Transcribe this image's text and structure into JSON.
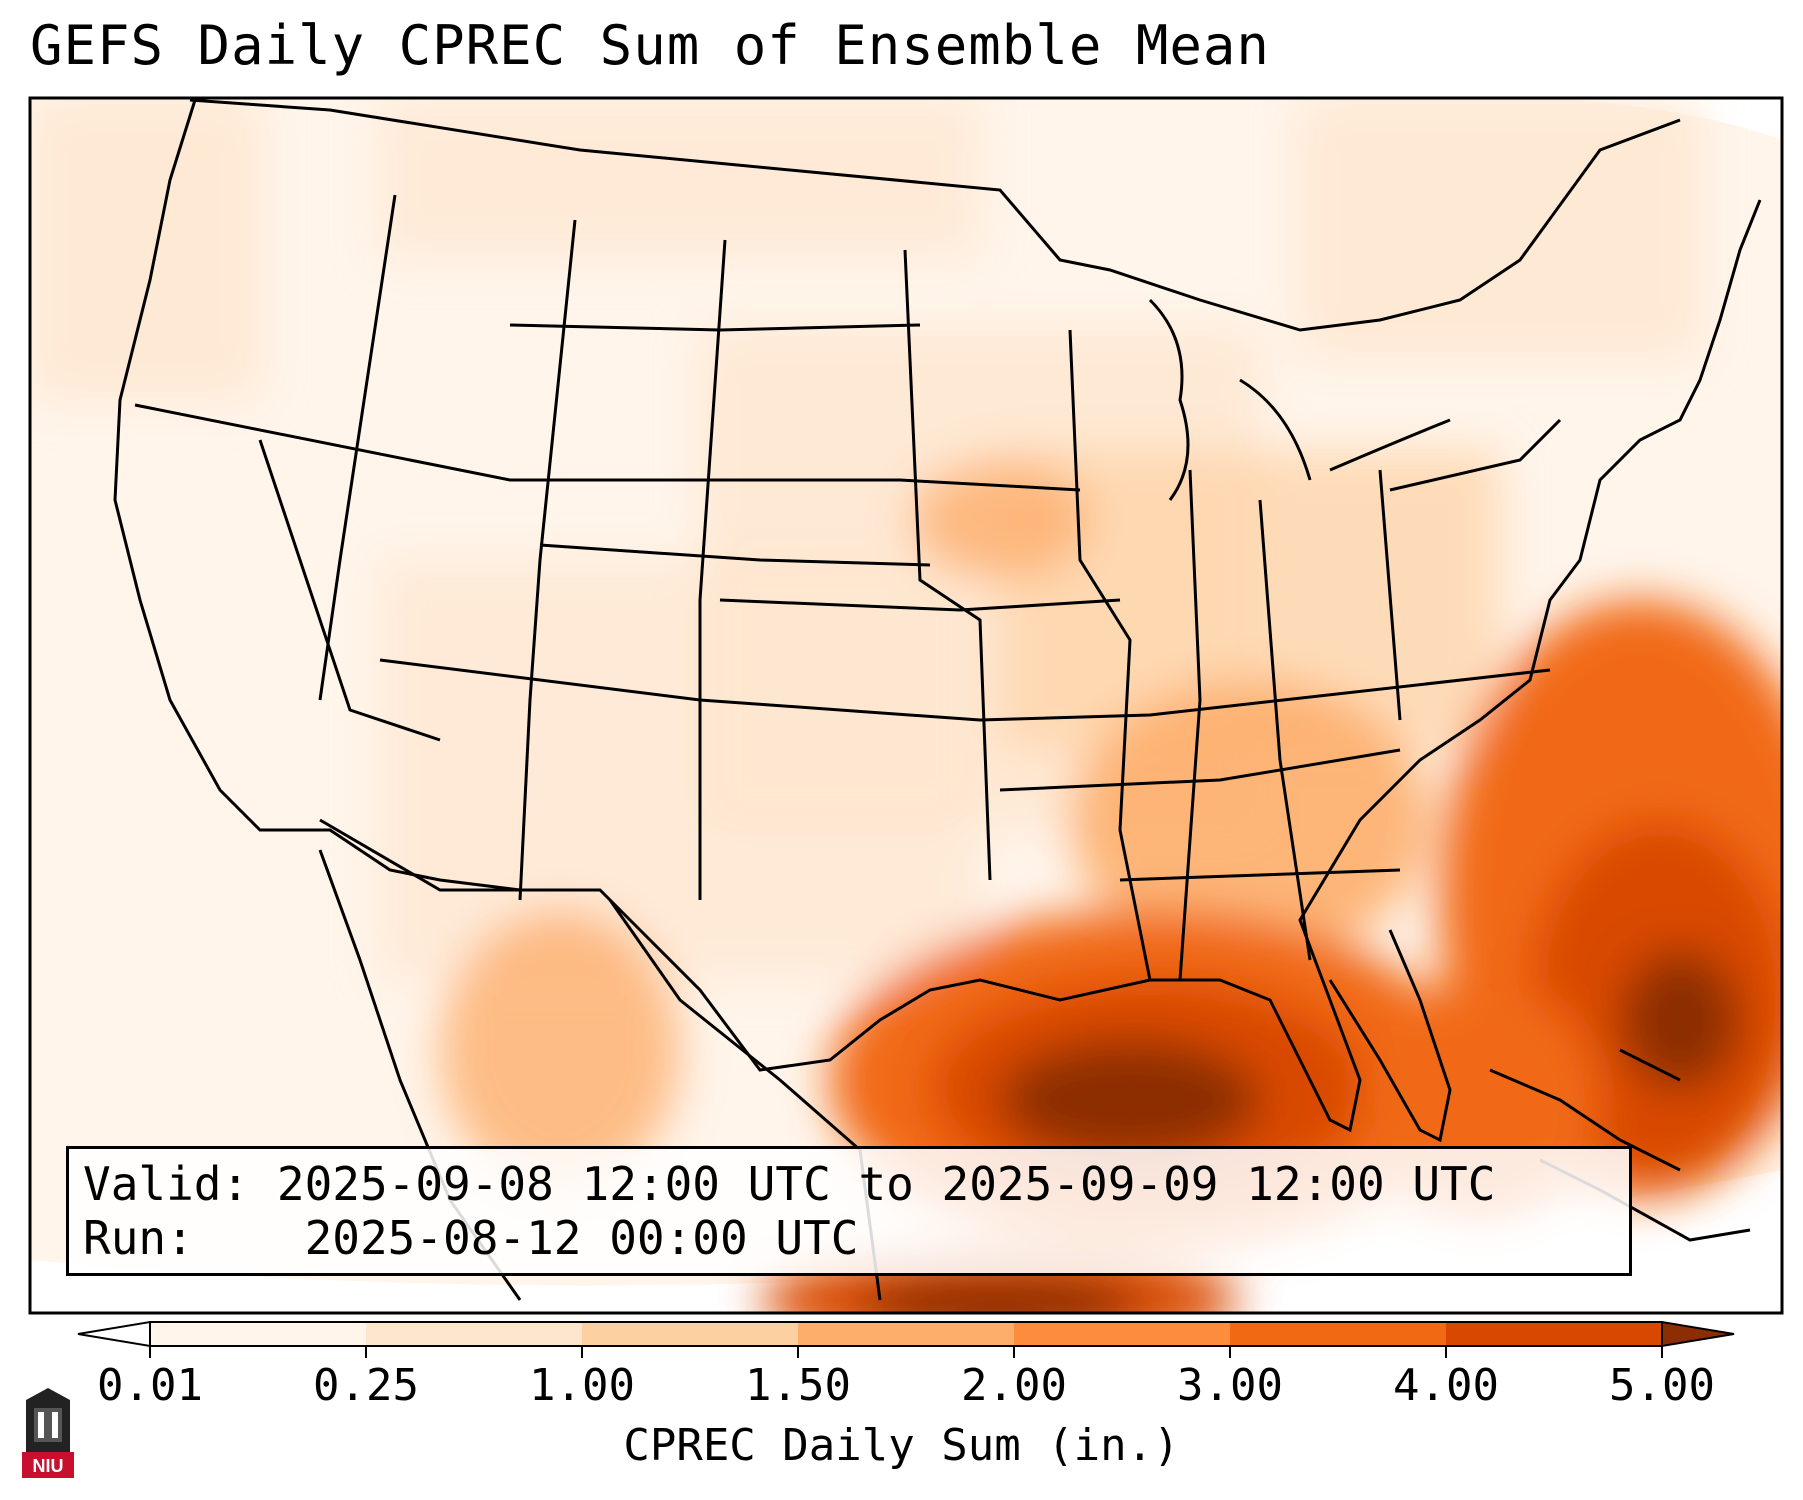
{
  "title": "GEFS Daily CPREC Sum of Ensemble Mean",
  "info": {
    "valid_label": "Valid:",
    "valid_value": "2025-09-08 12:00 UTC to 2025-09-09 12:00 UTC",
    "run_label": "Run:",
    "run_value": "2025-08-12 00:00 UTC"
  },
  "colorbar": {
    "label": "CPREC Daily Sum (in.)",
    "ticks": [
      "0.01",
      "0.25",
      "1.00",
      "1.50",
      "2.00",
      "3.00",
      "4.00",
      "5.00"
    ],
    "colors": [
      "#fff5eb",
      "#fee6ce",
      "#fdd0a2",
      "#fdae6b",
      "#fd8d3c",
      "#f16913",
      "#d94801",
      "#8c2d04"
    ],
    "extend": "both"
  },
  "logo": {
    "text": "NIU",
    "accent": "#c8102e"
  },
  "map": {
    "region": "Continental United States",
    "projection": "Lambert conformal",
    "max_precip_region": "Gulf of Mexico and western Atlantic"
  }
}
